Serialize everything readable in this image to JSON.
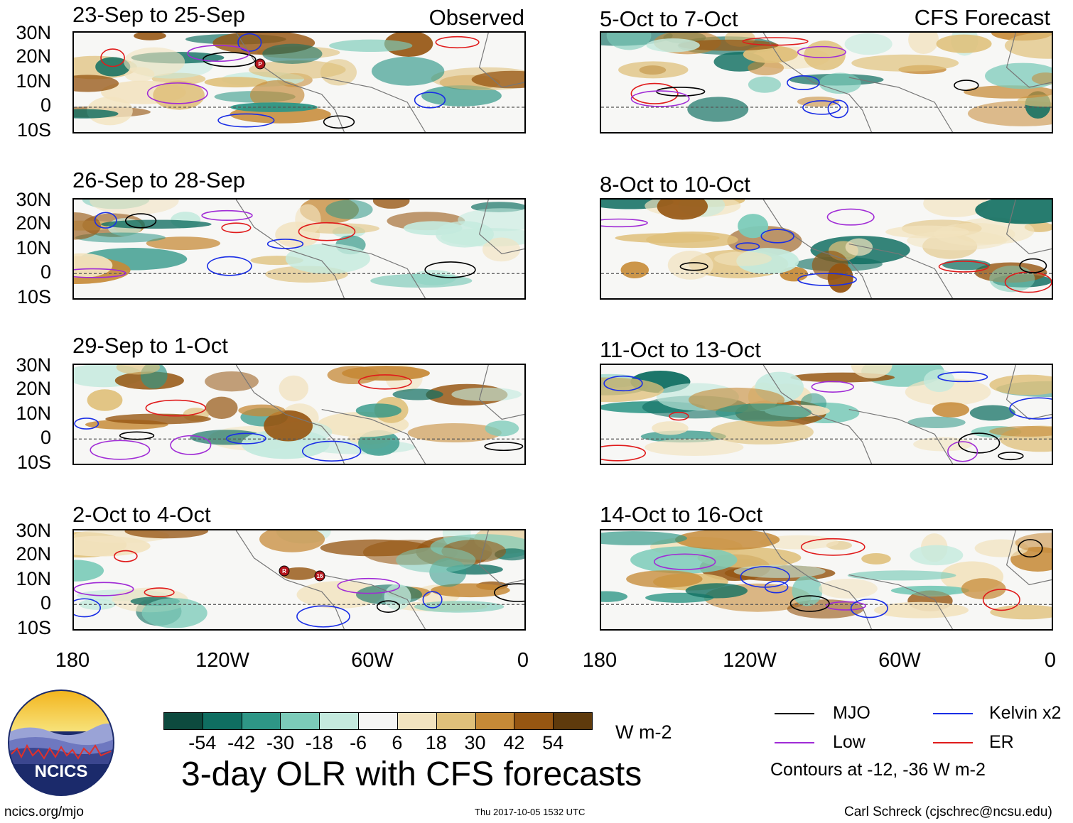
{
  "header": {
    "observed_label": "Observed",
    "forecast_label": "CFS Forecast"
  },
  "panels_left": [
    {
      "title": "23-Sep to 25-Sep"
    },
    {
      "title": "26-Sep to 28-Sep"
    },
    {
      "title": "29-Sep to 1-Oct"
    },
    {
      "title": "2-Oct to 4-Oct"
    }
  ],
  "panels_right": [
    {
      "title": "5-Oct to 7-Oct"
    },
    {
      "title": "8-Oct to 10-Oct"
    },
    {
      "title": "11-Oct to 13-Oct"
    },
    {
      "title": "14-Oct to 16-Oct"
    }
  ],
  "lat_labels": [
    "30N",
    "20N",
    "10N",
    "0",
    "10S"
  ],
  "lon_labels": [
    "180",
    "120W",
    "60W",
    "0"
  ],
  "colorbar": {
    "colors": [
      "#0d4a3e",
      "#0f6e61",
      "#2e9686",
      "#7ccbb9",
      "#c4eade",
      "#f5f5f4",
      "#f2e3bf",
      "#dfc07a",
      "#c68a37",
      "#965612",
      "#5e3a0c"
    ],
    "labels": [
      "-54",
      "-42",
      "-30",
      "-18",
      "-6",
      "6",
      "18",
      "30",
      "42",
      "54"
    ],
    "units": "W m-2"
  },
  "main_title": "3-day OLR with CFS forecasts",
  "legend": {
    "items": [
      {
        "label": "MJO",
        "color": "#000000"
      },
      {
        "label": "Kelvin x2",
        "color": "#1a2ee6"
      },
      {
        "label": "Low",
        "color": "#a02bd6"
      },
      {
        "label": "ER",
        "color": "#e01b1b"
      }
    ],
    "contours_note": "Contours at -12, -36 W m-2"
  },
  "logo": {
    "text": "NCICS"
  },
  "footer": {
    "url": "ncics.org/mjo",
    "timestamp": "Thu 2017-10-05 1532 UTC",
    "author": "Carl Schreck (cjschrec@ncsu.edu)"
  },
  "storm_markers": [
    {
      "panel": "23-Sep to 25-Sep",
      "label": "P"
    },
    {
      "panel": "2-Oct to 4-Oct",
      "label": "R"
    },
    {
      "panel": "2-Oct to 4-Oct",
      "label": "16"
    }
  ]
}
